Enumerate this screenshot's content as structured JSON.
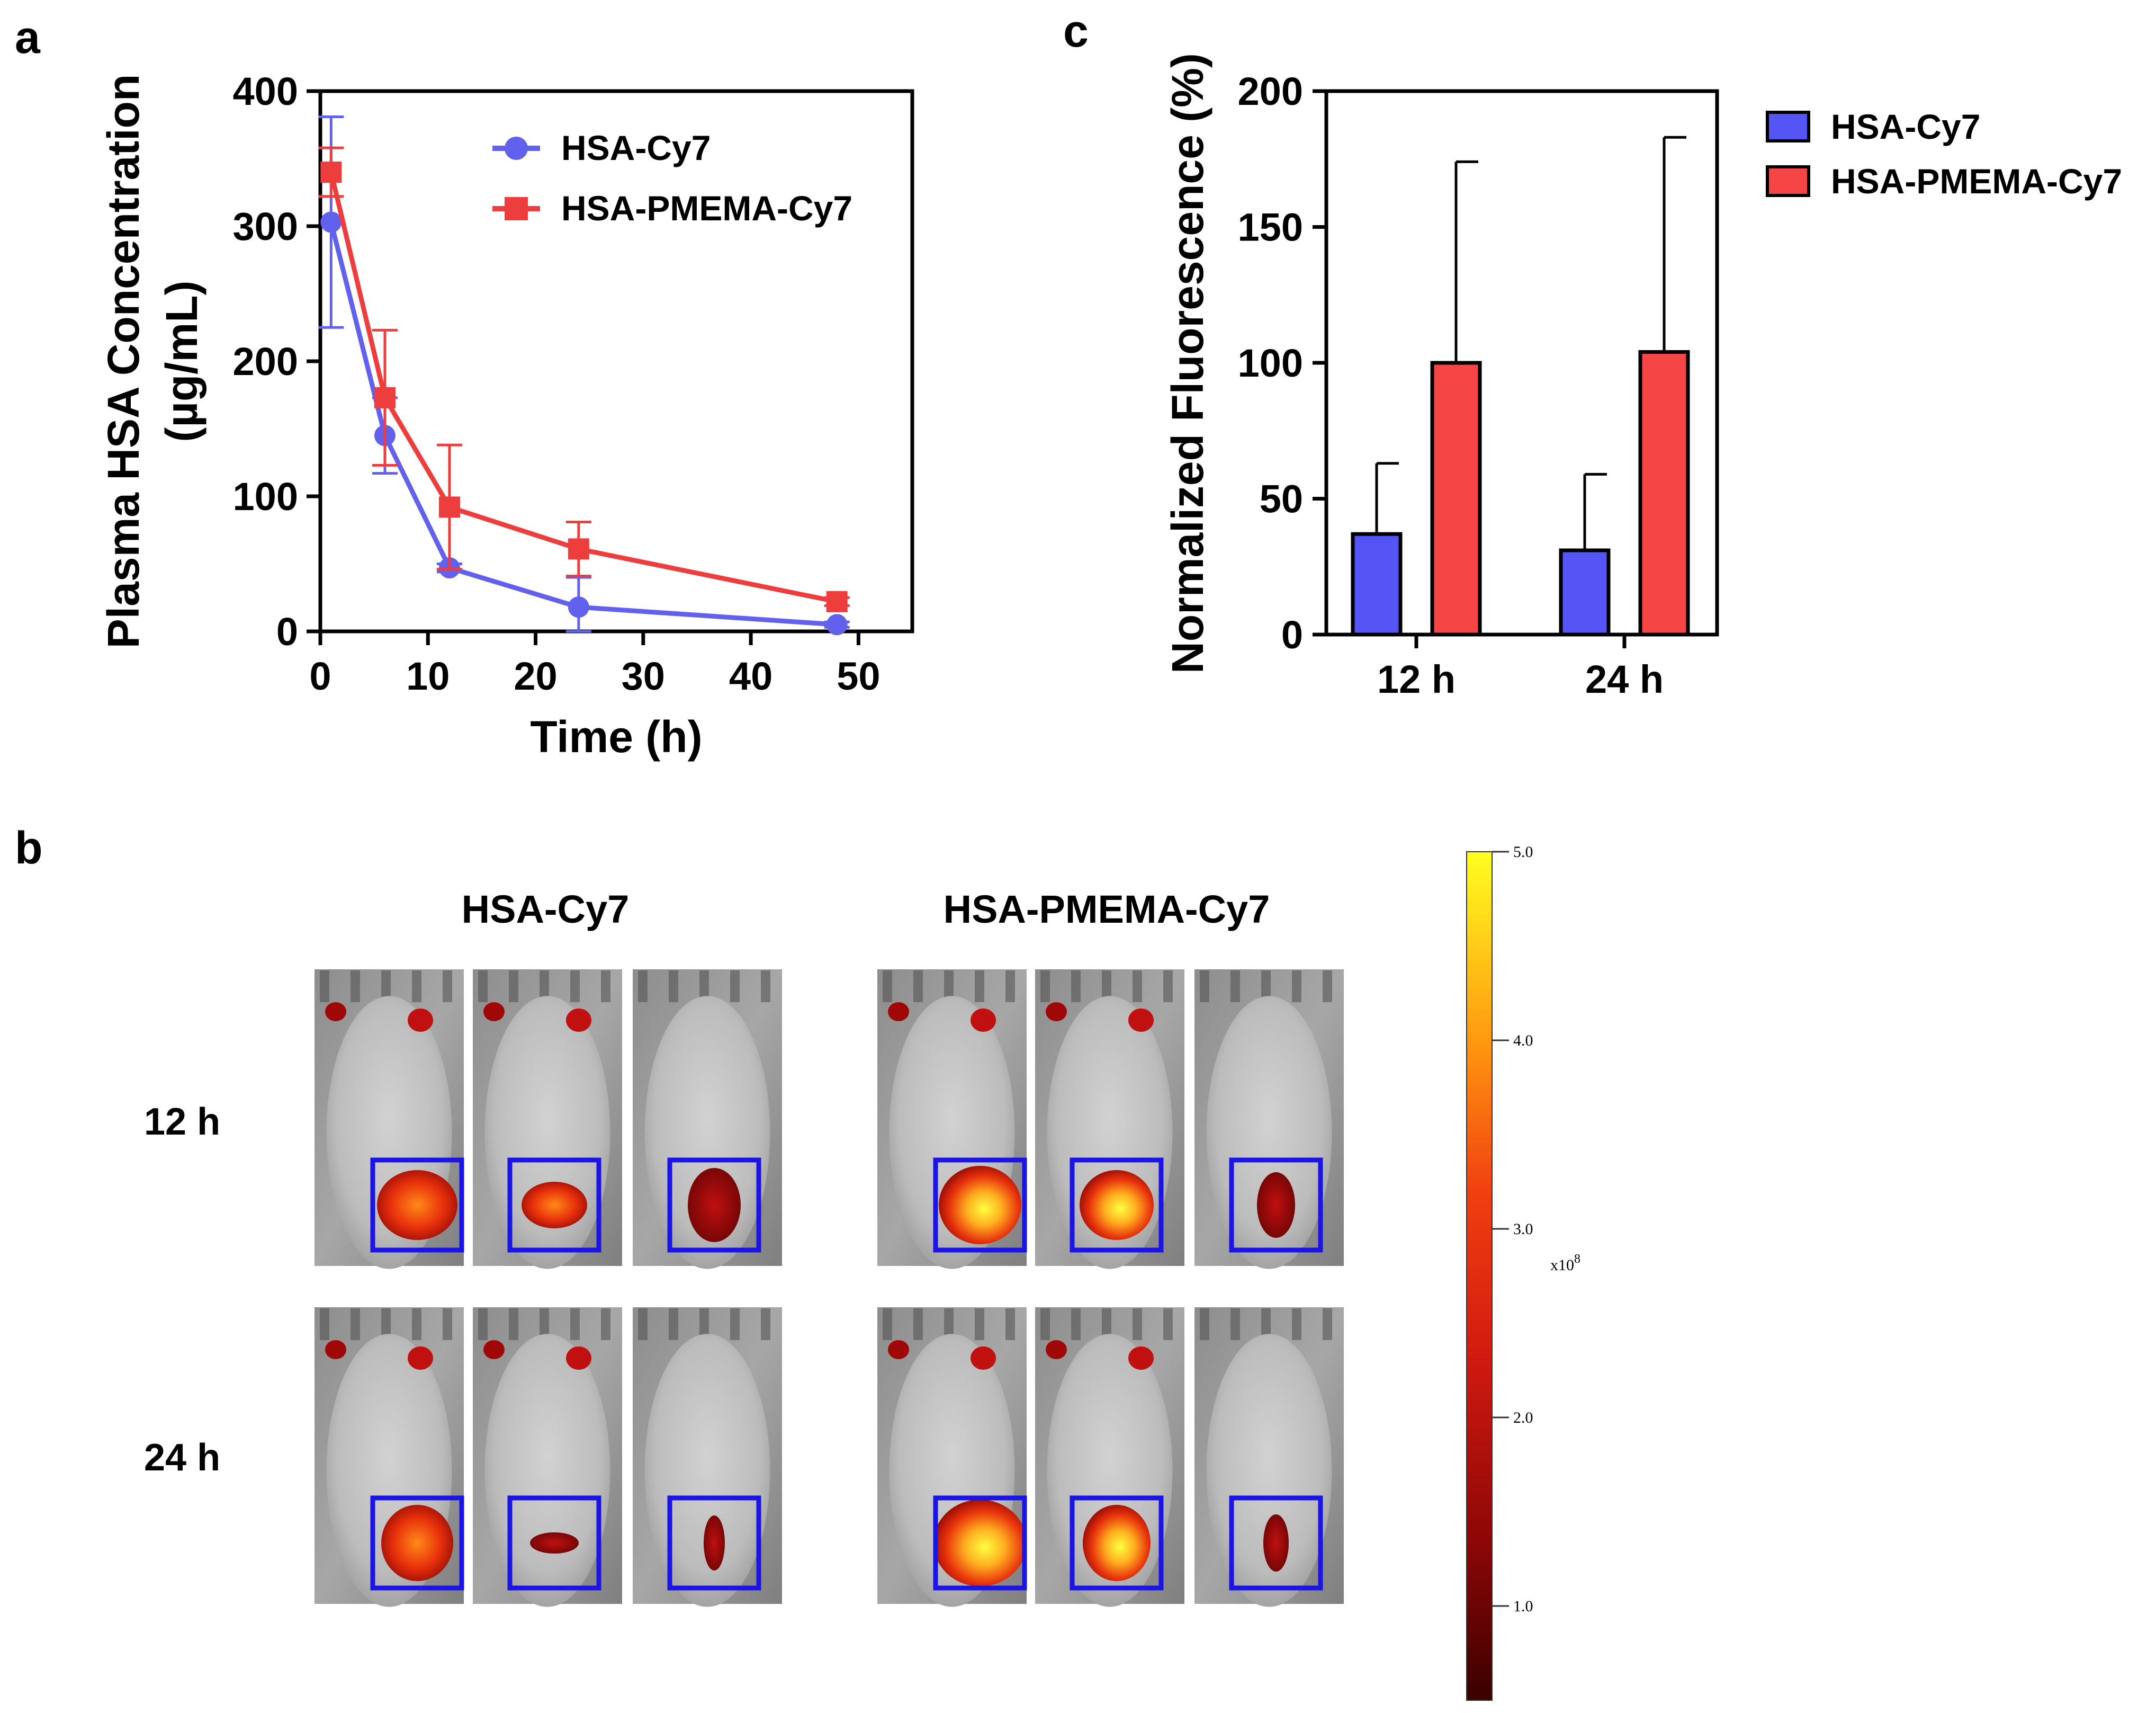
{
  "panels": {
    "a": "a",
    "b": "b",
    "c": "c"
  },
  "colors": {
    "hsa": "#6161ee",
    "pmema": "#ee3d3d",
    "hsa_bar": "#5555f5",
    "pmema_bar": "#f54545",
    "roi_box": "#1a14e6"
  },
  "chart_data": [
    {
      "id": "a",
      "type": "line",
      "title": "",
      "xlabel": "Time (h)",
      "ylabel": "Plasma HSA Concentration",
      "ylabel_units": "(µg/mL)",
      "xlim": [
        0,
        55
      ],
      "ylim": [
        0,
        400
      ],
      "xticks": [
        0,
        10,
        20,
        30,
        40,
        50
      ],
      "yticks": [
        0,
        100,
        200,
        300,
        400
      ],
      "legend_position": "top-center",
      "series": [
        {
          "name": "HSA-Cy7",
          "marker": "circle",
          "color": "#6161ee",
          "x": [
            1,
            6,
            12,
            24,
            48
          ],
          "y": [
            303,
            145,
            47,
            18,
            5
          ],
          "err": [
            78,
            28,
            3,
            22,
            2
          ]
        },
        {
          "name": "HSA-PMEMA-Cy7",
          "marker": "square",
          "color": "#ee3d3d",
          "x": [
            1,
            6,
            12,
            24,
            48
          ],
          "y": [
            340,
            173,
            92,
            61,
            22
          ],
          "err": [
            18,
            50,
            46,
            20,
            3
          ]
        }
      ]
    },
    {
      "id": "c",
      "type": "bar",
      "title": "",
      "xlabel": "",
      "ylabel": "Normalized Fluorescence (%)",
      "categories": [
        "12 h",
        "24 h"
      ],
      "ylim": [
        0,
        200
      ],
      "yticks": [
        0,
        50,
        100,
        150,
        200
      ],
      "legend_position": "right",
      "series": [
        {
          "name": "HSA-Cy7",
          "color": "#5555f5",
          "values": [
            37,
            31
          ],
          "err": [
            26,
            28
          ]
        },
        {
          "name": "HSA-PMEMA-Cy7",
          "color": "#f54545",
          "values": [
            100,
            104
          ],
          "err": [
            74,
            79
          ]
        }
      ]
    }
  ],
  "imaging": {
    "column_headers": [
      "HSA-Cy7",
      "HSA-PMEMA-Cy7"
    ],
    "row_headers": [
      "12 h",
      "24 h"
    ],
    "colorbar": {
      "min": 0.5,
      "max": 5.0,
      "ticks": [
        "5.0",
        "4.0",
        "3.0",
        "2.0",
        "1.0"
      ],
      "tick_values": [
        5.0,
        4.0,
        3.0,
        2.0,
        1.0
      ],
      "unit_prefix": "x10",
      "unit_exp": "8"
    }
  }
}
